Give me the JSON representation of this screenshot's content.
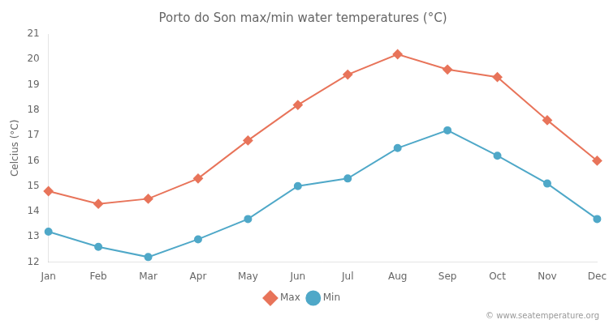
{
  "chart_data": {
    "type": "line",
    "title": "Porto do Son max/min water temperatures (°C)",
    "ylabel": "Celcius (°C)",
    "categories": [
      "Jan",
      "Feb",
      "Mar",
      "Apr",
      "May",
      "Jun",
      "Jul",
      "Aug",
      "Sep",
      "Oct",
      "Nov",
      "Dec"
    ],
    "series": [
      {
        "name": "Max",
        "color": "#e8745a",
        "marker": "diamond",
        "values": [
          14.8,
          14.3,
          14.5,
          15.3,
          16.8,
          18.2,
          19.4,
          20.2,
          19.6,
          19.3,
          17.6,
          16.0
        ]
      },
      {
        "name": "Min",
        "color": "#4fa8c8",
        "marker": "circle",
        "values": [
          13.2,
          12.6,
          12.2,
          12.9,
          13.7,
          15.0,
          15.3,
          16.5,
          17.2,
          16.2,
          15.1,
          13.7
        ]
      }
    ],
    "ylim": [
      12,
      21
    ],
    "yticks": [
      12,
      13,
      14,
      15,
      16,
      17,
      18,
      19,
      20,
      21
    ],
    "grid": false,
    "legend": "bottom",
    "annotations": [
      "© www.seatemperature.org"
    ]
  }
}
